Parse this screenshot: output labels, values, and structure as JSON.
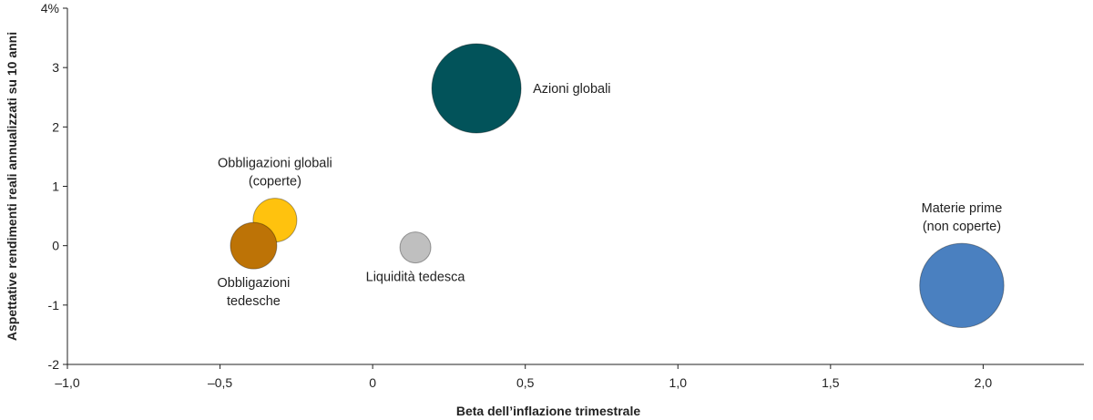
{
  "chart_data": {
    "type": "scatter",
    "title": "",
    "xlabel": "Beta dell’inflazione trimestrale",
    "ylabel": "Aspettative rendimenti reali annualizzati su 10 anni",
    "xlim": [
      -1.0,
      2.33
    ],
    "ylim": [
      -2,
      4
    ],
    "x_ticks": [
      -1.0,
      -0.5,
      0,
      0.5,
      1.0,
      1.5,
      2.0
    ],
    "x_tick_labels": [
      "–1,0",
      "–0,5",
      "0",
      "0,5",
      "1,0",
      "1,5",
      "2,0"
    ],
    "y_ticks": [
      -2,
      -1,
      0,
      1,
      2,
      3,
      4
    ],
    "y_tick_labels": [
      "-2",
      "-1",
      "0",
      "1",
      "2",
      "3",
      "4%"
    ],
    "grid": false,
    "legend": "none",
    "points": [
      {
        "label": [
          "Azioni globali"
        ],
        "x": 0.34,
        "y": 2.65,
        "size": 1.0,
        "color": "#02535A",
        "label_pos": "right"
      },
      {
        "label": [
          "Obbligazioni globali",
          "(coperte)"
        ],
        "x": -0.32,
        "y": 0.43,
        "size": 0.24,
        "color": "#FFC20E",
        "label_pos": "above"
      },
      {
        "label": [
          "Obbligazioni",
          "tedesche"
        ],
        "x": -0.39,
        "y": 0.0,
        "size": 0.27,
        "color": "#BD7306",
        "label_pos": "below"
      },
      {
        "label": [
          "Liquidità tedesca"
        ],
        "x": 0.14,
        "y": -0.03,
        "size": 0.12,
        "color": "#BFBFBF",
        "label_pos": "below"
      },
      {
        "label": [
          "Materie prime",
          "(non coperte)"
        ],
        "x": 1.93,
        "y": -0.67,
        "size": 0.89,
        "color": "#4A80C0",
        "label_pos": "above"
      }
    ]
  }
}
